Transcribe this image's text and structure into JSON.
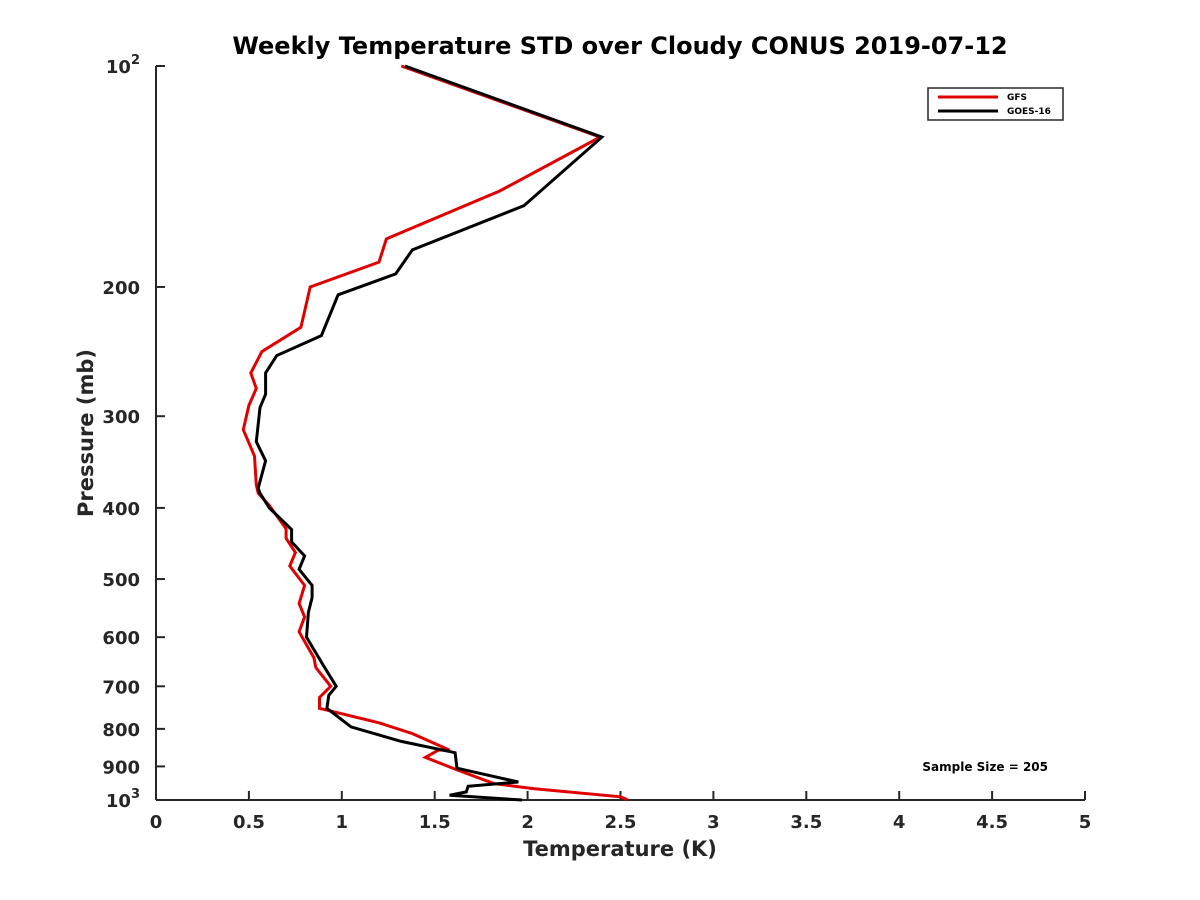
{
  "chart_data": {
    "type": "line",
    "title": "Weekly Temperature STD over Cloudy CONUS 2019-07-12",
    "xlabel": "Temperature (K)",
    "ylabel": "Pressure (mb)",
    "xlim": [
      0,
      5
    ],
    "ylim": [
      100,
      1000
    ],
    "yscale": "log",
    "y_reversed": true,
    "x_ticks": [
      0,
      0.5,
      1,
      1.5,
      2,
      2.5,
      3,
      3.5,
      4,
      4.5,
      5
    ],
    "x_tick_labels": [
      "0",
      "0.5",
      "1",
      "1.5",
      "2",
      "2.5",
      "3",
      "3.5",
      "4",
      "4.5",
      "5"
    ],
    "y_ticks": [
      100,
      200,
      300,
      400,
      500,
      600,
      700,
      800,
      900,
      1000
    ],
    "y_tick_labels": [
      {
        "base": "10",
        "exp": "2"
      },
      {
        "base": "200",
        "exp": ""
      },
      {
        "base": "300",
        "exp": ""
      },
      {
        "base": "400",
        "exp": ""
      },
      {
        "base": "500",
        "exp": ""
      },
      {
        "base": "600",
        "exp": ""
      },
      {
        "base": "700",
        "exp": ""
      },
      {
        "base": "800",
        "exp": ""
      },
      {
        "base": "900",
        "exp": ""
      },
      {
        "base": "10",
        "exp": "3"
      }
    ],
    "grid": false,
    "legend_position": "top-right",
    "annotation": "Sample Size = 205",
    "series": [
      {
        "name": "GFS",
        "color": "#e00000",
        "points": [
          [
            1.32,
            100
          ],
          [
            2.39,
            125
          ],
          [
            1.85,
            148
          ],
          [
            1.24,
            172
          ],
          [
            1.2,
            185
          ],
          [
            0.83,
            200
          ],
          [
            0.78,
            227
          ],
          [
            0.57,
            245
          ],
          [
            0.51,
            262
          ],
          [
            0.54,
            275
          ],
          [
            0.5,
            290
          ],
          [
            0.47,
            313
          ],
          [
            0.53,
            340
          ],
          [
            0.54,
            372
          ],
          [
            0.55,
            382
          ],
          [
            0.61,
            397
          ],
          [
            0.7,
            427
          ],
          [
            0.7,
            440
          ],
          [
            0.75,
            460
          ],
          [
            0.72,
            480
          ],
          [
            0.8,
            510
          ],
          [
            0.77,
            540
          ],
          [
            0.8,
            563
          ],
          [
            0.77,
            590
          ],
          [
            0.85,
            640
          ],
          [
            0.86,
            660
          ],
          [
            0.94,
            700
          ],
          [
            0.88,
            725
          ],
          [
            0.88,
            750
          ],
          [
            1.2,
            785
          ],
          [
            1.38,
            812
          ],
          [
            1.58,
            855
          ],
          [
            1.52,
            855
          ],
          [
            1.45,
            875
          ],
          [
            1.62,
            910
          ],
          [
            1.82,
            950
          ],
          [
            2.03,
            965
          ],
          [
            2.5,
            990
          ],
          [
            2.54,
            1000
          ]
        ]
      },
      {
        "name": "GOES-16",
        "color": "#000000",
        "points": [
          [
            1.34,
            100
          ],
          [
            2.4,
            125
          ],
          [
            1.98,
            155
          ],
          [
            1.38,
            178
          ],
          [
            1.29,
            192
          ],
          [
            0.98,
            205
          ],
          [
            0.89,
            233
          ],
          [
            0.65,
            248
          ],
          [
            0.59,
            262
          ],
          [
            0.59,
            280
          ],
          [
            0.56,
            292
          ],
          [
            0.54,
            325
          ],
          [
            0.59,
            345
          ],
          [
            0.55,
            376
          ],
          [
            0.56,
            382
          ],
          [
            0.61,
            400
          ],
          [
            0.73,
            428
          ],
          [
            0.73,
            445
          ],
          [
            0.8,
            465
          ],
          [
            0.77,
            485
          ],
          [
            0.84,
            510
          ],
          [
            0.84,
            530
          ],
          [
            0.82,
            555
          ],
          [
            0.81,
            600
          ],
          [
            0.9,
            655
          ],
          [
            0.97,
            700
          ],
          [
            0.93,
            720
          ],
          [
            0.92,
            750
          ],
          [
            1.05,
            795
          ],
          [
            1.32,
            832
          ],
          [
            1.61,
            862
          ],
          [
            1.62,
            905
          ],
          [
            1.95,
            945
          ],
          [
            1.68,
            958
          ],
          [
            1.67,
            975
          ],
          [
            1.58,
            985
          ],
          [
            1.97,
            1000
          ]
        ]
      }
    ]
  }
}
